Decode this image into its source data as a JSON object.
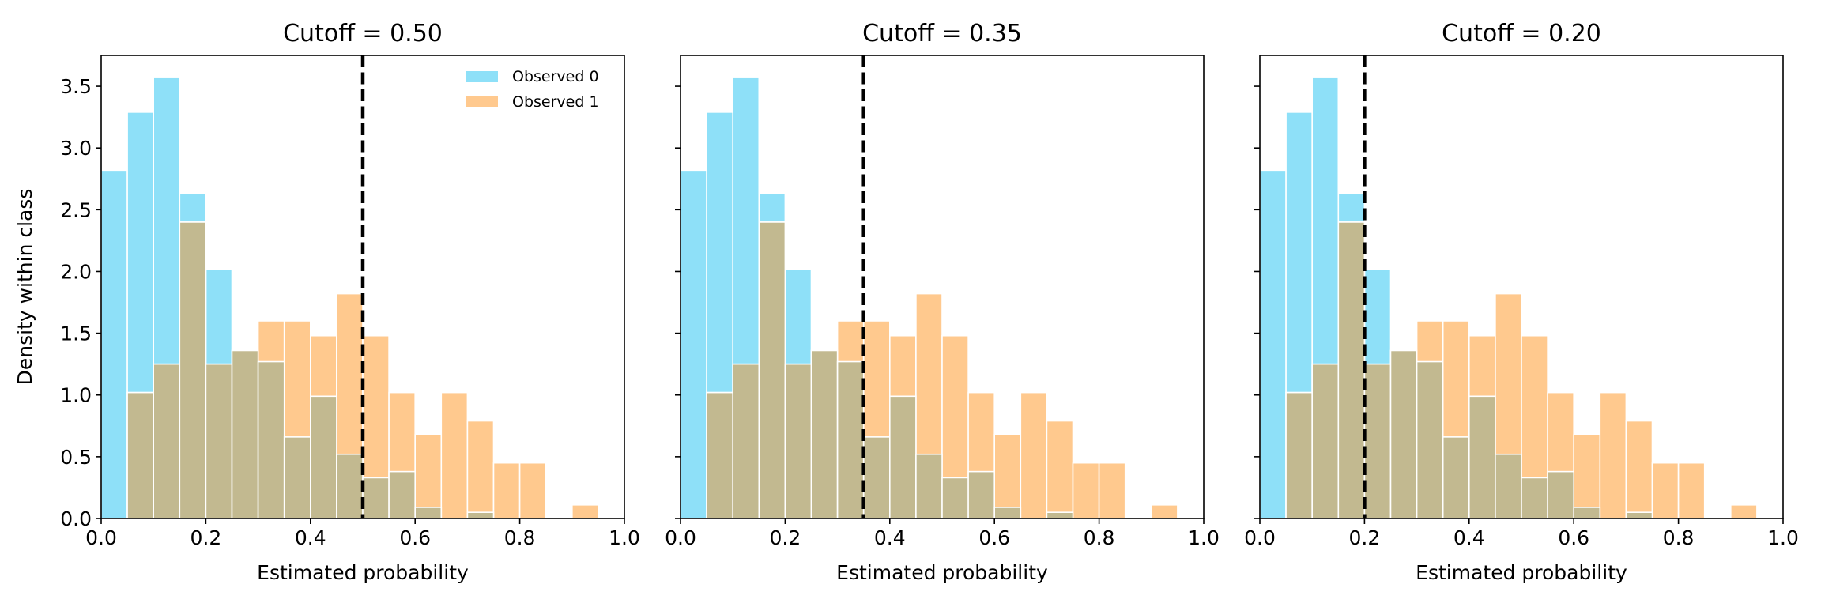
{
  "chart_data": {
    "type": "bar",
    "ylabel": "Density within class",
    "xlabel": "Estimated probability",
    "xlim": [
      0.0,
      1.0
    ],
    "ylim": [
      0.0,
      3.75
    ],
    "xticks": [
      "0.0",
      "0.2",
      "0.4",
      "0.6",
      "0.8",
      "1.0"
    ],
    "yticks": [
      "0.0",
      "0.5",
      "1.0",
      "1.5",
      "2.0",
      "2.5",
      "3.0",
      "3.5"
    ],
    "bin_width": 0.05,
    "bin_edges": [
      0.0,
      0.05,
      0.1,
      0.15,
      0.2,
      0.25,
      0.3,
      0.35,
      0.4,
      0.45,
      0.5,
      0.55,
      0.6,
      0.65,
      0.7,
      0.75,
      0.8,
      0.85,
      0.9,
      0.95,
      1.0
    ],
    "legend_position": "upper-right",
    "series": [
      {
        "name": "Observed 0",
        "color": "#8ee0f8",
        "values": [
          2.82,
          3.29,
          3.57,
          2.63,
          2.02,
          1.36,
          1.27,
          0.66,
          0.99,
          0.52,
          0.33,
          0.38,
          0.09,
          0.0,
          0.05,
          0.0,
          0.0,
          0.0,
          0.0,
          0.0
        ]
      },
      {
        "name": "Observed 1",
        "color": "#ffc98e",
        "values": [
          0.0,
          1.02,
          1.25,
          2.4,
          1.25,
          1.36,
          1.6,
          1.6,
          1.48,
          1.82,
          1.48,
          1.02,
          0.68,
          1.02,
          0.79,
          0.45,
          0.45,
          0.0,
          0.11,
          0.0
        ]
      }
    ],
    "overlap_color": "#c2b990",
    "bar_edge_color": "#ffffff",
    "cutoff_line_color": "#000000",
    "panels": [
      {
        "title": "Cutoff = 0.50",
        "cutoff": 0.5
      },
      {
        "title": "Cutoff = 0.35",
        "cutoff": 0.35
      },
      {
        "title": "Cutoff = 0.20",
        "cutoff": 0.2
      }
    ]
  }
}
